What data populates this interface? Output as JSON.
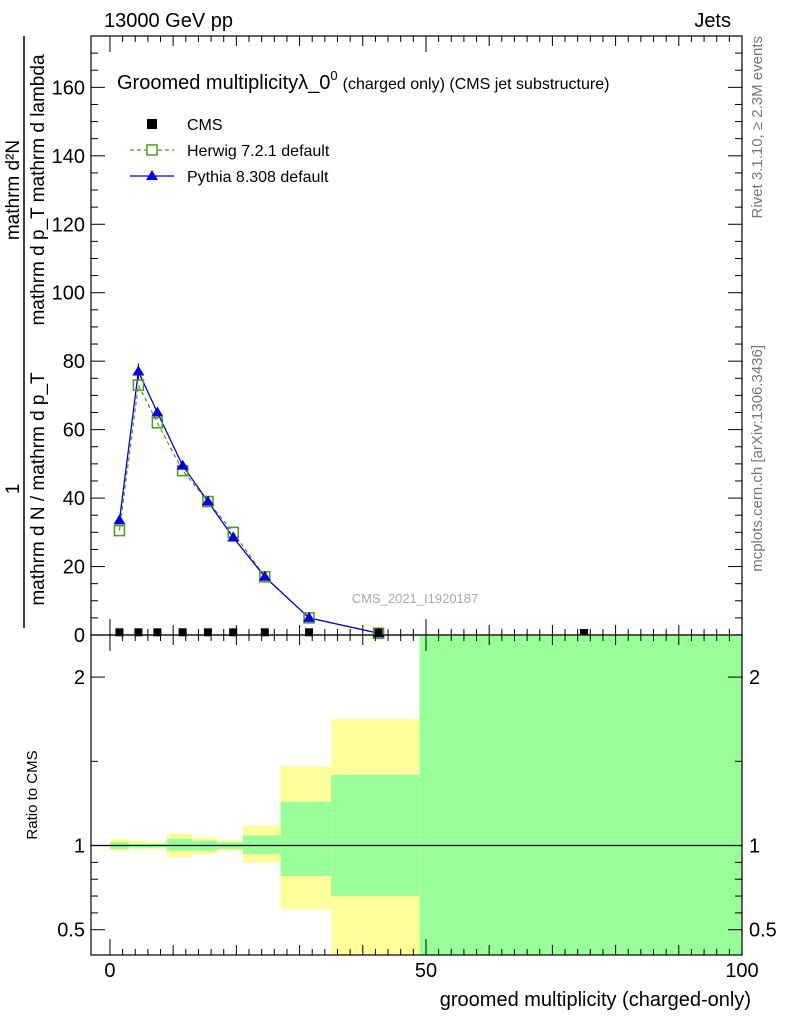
{
  "header": {
    "left": "13000 GeV pp",
    "right": "Jets"
  },
  "side_labels": {
    "rivet": "Rivet 3.1.10, ≥ 2.3M events",
    "mcplots": "mcplots.cern.ch [arXiv:1306.3436]"
  },
  "watermark": "CMS_2021_I1920187",
  "chart_data": [
    {
      "type": "line",
      "title": "Groomed multiplicityλ_0",
      "title_superscript": "0",
      "title_suffix": "(charged only) (CMS jet substructure)",
      "ylabel": "1 / (mathrm d N / mathrm d p_T) · mathrm d²N / (mathrm d p_T mathrm d lambda)",
      "ylabel_parts": {
        "numerator_top": "mathrm d²N",
        "numerator_bottom": "mathrm d p_T mathrm d lambda",
        "factor": "1",
        "denominator": "mathrm d N / mathrm d p_T"
      },
      "xlim": [
        -3,
        100
      ],
      "ylim": [
        0,
        175
      ],
      "yticks": [
        0,
        20,
        40,
        60,
        80,
        100,
        120,
        140,
        160
      ],
      "legend_position": "top-left",
      "legend": [
        {
          "label": "CMS",
          "marker": "square-filled",
          "color": "#000000"
        },
        {
          "label": "Herwig 7.2.1 default",
          "marker": "square-open",
          "color": "#4d9a1a",
          "dashed": true
        },
        {
          "label": "Pythia 8.308 default",
          "marker": "triangle-filled",
          "color": "#0000e0"
        }
      ],
      "series": [
        {
          "name": "CMS",
          "x": [
            1.5,
            4.5,
            7.5,
            11.5,
            15.5,
            19.5,
            24.5,
            31.5,
            42.5,
            75
          ],
          "y": [
            0.2,
            0.2,
            0.2,
            0.2,
            0.2,
            0.2,
            0.2,
            0.2,
            0.1,
            0.0
          ]
        },
        {
          "name": "Herwig 7.2.1 default",
          "x": [
            1.5,
            4.5,
            7.5,
            11.5,
            15.5,
            19.5,
            24.5,
            31.5,
            42.5
          ],
          "y": [
            30.5,
            73,
            62,
            48,
            39,
            30,
            17,
            5,
            0.5
          ]
        },
        {
          "name": "Pythia 8.308 default",
          "x": [
            1.5,
            4.5,
            7.5,
            11.5,
            15.5,
            19.5,
            24.5,
            31.5,
            42.5
          ],
          "y": [
            33.5,
            77,
            65,
            49.5,
            39,
            28.5,
            17,
            5,
            0.5
          ]
        }
      ]
    },
    {
      "type": "area",
      "ylabel": "Ratio to CMS",
      "xlabel": "groomed multiplicity (charged-only)",
      "xlim": [
        -3,
        100
      ],
      "ylim": [
        0.35,
        2.25
      ],
      "xticks": [
        0,
        50,
        100
      ],
      "yticks": [
        0.5,
        1,
        2
      ],
      "reference_line": 1,
      "bands": {
        "colors": {
          "outer": "#ffff99",
          "inner": "#99ff99"
        },
        "bins": [
          {
            "x0": 0,
            "x1": 3,
            "outer": [
              0.97,
              1.04
            ],
            "inner": [
              0.98,
              1.02
            ]
          },
          {
            "x0": 3,
            "x1": 6,
            "outer": [
              0.98,
              1.03
            ],
            "inner": [
              0.99,
              1.01
            ]
          },
          {
            "x0": 6,
            "x1": 9,
            "outer": [
              0.98,
              1.02
            ],
            "inner": [
              0.99,
              1.01
            ]
          },
          {
            "x0": 9,
            "x1": 13,
            "outer": [
              0.93,
              1.07
            ],
            "inner": [
              0.97,
              1.04
            ]
          },
          {
            "x0": 13,
            "x1": 17,
            "outer": [
              0.95,
              1.05
            ],
            "inner": [
              0.97,
              1.03
            ]
          },
          {
            "x0": 17,
            "x1": 21,
            "outer": [
              0.97,
              1.03
            ],
            "inner": [
              0.98,
              1.02
            ]
          },
          {
            "x0": 21,
            "x1": 27,
            "outer": [
              0.9,
              1.12
            ],
            "inner": [
              0.95,
              1.06
            ]
          },
          {
            "x0": 27,
            "x1": 35,
            "outer": [
              0.62,
              1.47
            ],
            "inner": [
              0.82,
              1.26
            ]
          },
          {
            "x0": 35,
            "x1": 49,
            "outer": [
              0.35,
              1.75
            ],
            "inner": [
              0.7,
              1.42
            ]
          },
          {
            "x0": 49,
            "x1": 100,
            "outer": [
              0.35,
              2.25
            ],
            "inner": [
              0.35,
              2.25
            ]
          }
        ]
      }
    }
  ]
}
